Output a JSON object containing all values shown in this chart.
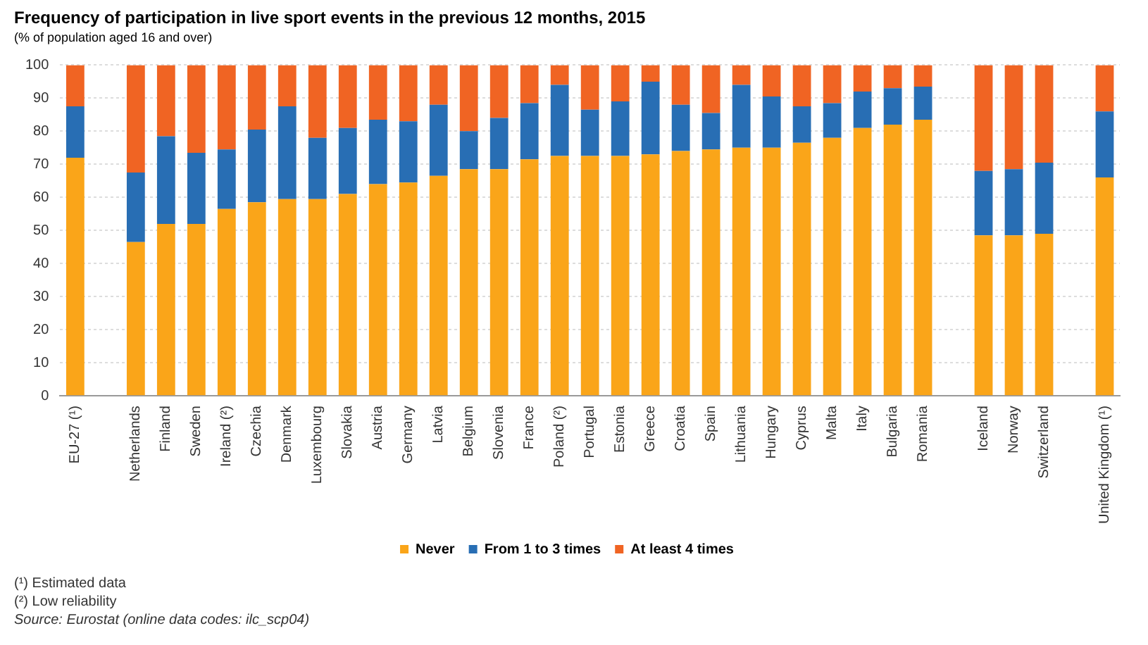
{
  "chart_data": {
    "type": "bar",
    "title": "Frequency of participation in live sport events in the previous 12 months, 2015",
    "subtitle": "(% of population aged 16 and over)",
    "categories": [
      "EU-27 (¹)",
      null,
      "Netherlands",
      "Finland",
      "Sweden",
      "Ireland (²)",
      "Czechia",
      "Denmark",
      "Luxembourg",
      "Slovakia",
      "Austria",
      "Germany",
      "Latvia",
      "Belgium",
      "Slovenia",
      "France",
      "Poland (²)",
      "Portugal",
      "Estonia",
      "Greece",
      "Croatia",
      "Spain",
      "Lithuania",
      "Hungary",
      "Cyprus",
      "Malta",
      "Italy",
      "Bulgaria",
      "Romania",
      null,
      "Iceland",
      "Norway",
      "Switzerland",
      null,
      "United Kingdom (¹)"
    ],
    "stacked": true,
    "series": [
      {
        "name": "Never",
        "color": "#faa519",
        "values": [
          72,
          null,
          46.5,
          52,
          52,
          56.5,
          58.5,
          59.5,
          59.5,
          61,
          64,
          64.5,
          66.5,
          68.5,
          68.5,
          71.5,
          72.5,
          72.5,
          72.5,
          73,
          74,
          74.5,
          75,
          75,
          76.5,
          78,
          81,
          82,
          83.5,
          null,
          48.5,
          48.5,
          49,
          null,
          66
        ]
      },
      {
        "name": "From 1 to 3 times",
        "color": "#286eb4",
        "values": [
          15.5,
          null,
          21,
          26.5,
          21.5,
          18,
          22,
          28,
          18.5,
          20,
          19.5,
          18.5,
          21.5,
          11.5,
          15.5,
          17,
          21.5,
          14,
          16.5,
          22,
          14,
          11,
          19,
          15.5,
          11,
          10.5,
          11,
          11,
          10,
          null,
          19.5,
          20,
          21.5,
          null,
          20
        ]
      },
      {
        "name": "At least 4 times",
        "color": "#f06423",
        "values": [
          12.5,
          null,
          32.5,
          21.5,
          26.5,
          25.5,
          19.5,
          12.5,
          22,
          19,
          16.5,
          17,
          12,
          20,
          16,
          11.5,
          6,
          13.5,
          11,
          5,
          12,
          14.5,
          6,
          9.5,
          12.5,
          11.5,
          8,
          7,
          6.5,
          null,
          32,
          31.5,
          29.5,
          null,
          14
        ]
      }
    ],
    "ylim": [
      0,
      100
    ],
    "yticks": [
      0,
      10,
      20,
      30,
      40,
      50,
      60,
      70,
      80,
      90,
      100
    ],
    "grid": "y",
    "legend": "bottom",
    "annotations": [
      "(¹) Estimated data",
      "(²) Low reliability",
      "Source: Eurostat (online data codes: ilc_scp04)"
    ]
  }
}
